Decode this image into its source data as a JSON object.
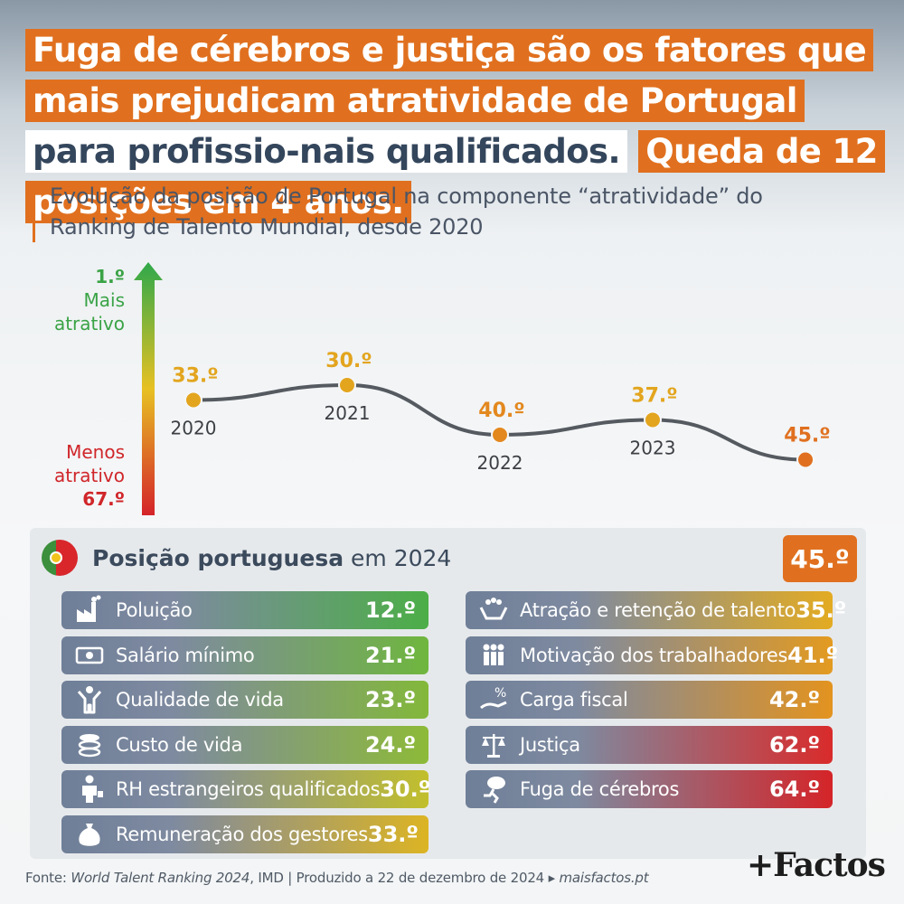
{
  "headline": {
    "part1": "Fuga de cérebros e justiça são os fatores que mais prejudicam atratividade de Portugal",
    "part2": "para profissio-nais qualificados.",
    "part3": "Queda de 12 posições em 4 anos."
  },
  "subtitle": "Evolução da posição de Portugal na componente “atratividade” do Ranking de Talento Mundial, desde 2020",
  "scale": {
    "top_rank": "1.º",
    "top_label": "Mais atrativo",
    "bottom_label": "Menos atrativo",
    "bottom_rank": "67.º"
  },
  "chart_data": {
    "type": "line",
    "x": [
      "2020",
      "2021",
      "2022",
      "2023",
      "2024"
    ],
    "series": [
      {
        "values": [
          33,
          30,
          40,
          37,
          45
        ]
      }
    ],
    "data_labels": [
      "33.º",
      "30.º",
      "40.º",
      "37.º",
      "45.º"
    ],
    "point_colors": [
      "#e3a51e",
      "#e3a51e",
      "#e3881e",
      "#e3a51e",
      "#e0701f"
    ],
    "y_inverted": true,
    "ylim": [
      1,
      67
    ],
    "grid": false,
    "legend": "none"
  },
  "panel": {
    "title_bold": "Posição portuguesa",
    "title_rest": " em 2024",
    "overall_rank": "45.º",
    "items": [
      {
        "label": "Poluição",
        "value": "12.º",
        "icon": "factory-icon",
        "color": "#4cae47"
      },
      {
        "label": "Salário mínimo",
        "value": "21.º",
        "icon": "banknote-icon",
        "color": "#6fb63e"
      },
      {
        "label": "Qualidade de vida",
        "value": "23.º",
        "icon": "person-cheering-icon",
        "color": "#83b83a"
      },
      {
        "label": "Custo de vida",
        "value": "24.º",
        "icon": "coins-icon",
        "color": "#8dba38"
      },
      {
        "label": "RH estrangeiros qualificados",
        "value": "30.º",
        "icon": "businessman-icon",
        "color": "#c2bf2c"
      },
      {
        "label": "Remuneração dos gestores",
        "value": "33.º",
        "icon": "money-bag-icon",
        "color": "#dcb423"
      },
      {
        "label": "Atração e retenção de talento",
        "value": "35.º",
        "icon": "hands-people-icon",
        "color": "#e3ab22"
      },
      {
        "label": "Motivação dos trabalhadores",
        "value": "41.º",
        "icon": "group-icon",
        "color": "#e39a20"
      },
      {
        "label": "Carga fiscal",
        "value": "42.º",
        "icon": "tax-hand-icon",
        "color": "#e3931f"
      },
      {
        "label": "Justiça",
        "value": "62.º",
        "icon": "scales-icon",
        "color": "#d92b2b"
      },
      {
        "label": "Fuga de cérebros",
        "value": "64.º",
        "icon": "running-brain-icon",
        "color": "#d42428"
      }
    ]
  },
  "footer": {
    "prefix": "Fonte: ",
    "source": "World Talent Ranking 2024",
    "middle": ", IMD  |  Produzido a 22 de dezembro de 2024 ▸ ",
    "site": "maisfactos.pt"
  },
  "logo": "+Factos"
}
